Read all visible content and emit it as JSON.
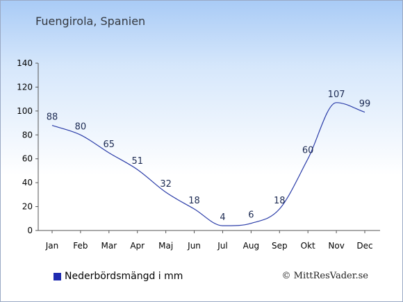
{
  "title": "Fuengirola, Spanien",
  "legend_label": "Nederbördsmängd i mm",
  "copyright": "© MittResVader.se",
  "colors": {
    "line": "#2a3ca8",
    "swatch": "#1f2bb0",
    "axis": "#555555"
  },
  "chart_data": {
    "type": "line",
    "categories": [
      "Jan",
      "Feb",
      "Mar",
      "Apr",
      "Maj",
      "Jun",
      "Jul",
      "Aug",
      "Sep",
      "Okt",
      "Nov",
      "Dec"
    ],
    "values": [
      88,
      80,
      65,
      51,
      32,
      18,
      4,
      6,
      18,
      60,
      107,
      99
    ],
    "y_ticks": [
      0,
      20,
      40,
      60,
      80,
      100,
      120,
      140
    ],
    "ylim": [
      0,
      140
    ],
    "grid": false,
    "legend_position": "bottom-left"
  }
}
